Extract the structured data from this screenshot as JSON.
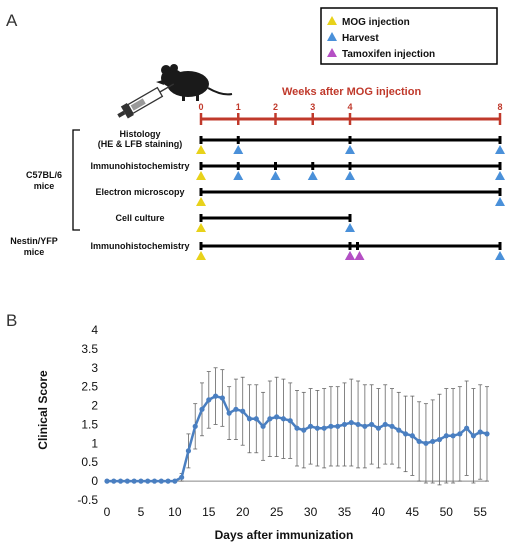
{
  "panel_a": {
    "label": "A",
    "legend": [
      {
        "label": "MOG injection",
        "color": "#e8d21a"
      },
      {
        "label": "Harvest",
        "color": "#4a90d9"
      },
      {
        "label": "Tamoxifen injection",
        "color": "#b54fc4"
      }
    ],
    "timeline": {
      "title": "Weeks after MOG injection",
      "ticks": [
        "0",
        "1",
        "2",
        "3",
        "4",
        "8"
      ],
      "tick_weeks": [
        0,
        1,
        2,
        3,
        4,
        8
      ],
      "color": "#c0392b"
    },
    "groups": [
      {
        "name_lines": [
          "C57BL/6",
          "mice"
        ]
      },
      {
        "name_lines": [
          "Nestin/YFP",
          "mice"
        ]
      }
    ],
    "rows": [
      {
        "label_lines": [
          "Histology",
          "(HE & LFB staining)"
        ],
        "end_week": 8,
        "tick_weeks": [
          0,
          1,
          4,
          8
        ],
        "mog_weeks": [
          0
        ],
        "harvest_weeks": [
          1,
          4,
          8
        ],
        "tamoxifen_weeks": []
      },
      {
        "label_lines": [
          "Immunohistochemistry"
        ],
        "end_week": 8,
        "tick_weeks": [
          0,
          1,
          2,
          3,
          4,
          8
        ],
        "mog_weeks": [
          0
        ],
        "harvest_weeks": [
          1,
          2,
          3,
          4,
          8
        ],
        "tamoxifen_weeks": []
      },
      {
        "label_lines": [
          "Electron microscopy"
        ],
        "end_week": 8,
        "tick_weeks": [
          0,
          8
        ],
        "mog_weeks": [
          0
        ],
        "harvest_weeks": [
          8
        ],
        "tamoxifen_weeks": []
      },
      {
        "label_lines": [
          "Cell culture"
        ],
        "end_week": 4,
        "tick_weeks": [
          0,
          4
        ],
        "mog_weeks": [
          0
        ],
        "harvest_weeks": [
          4
        ],
        "tamoxifen_weeks": []
      },
      {
        "label_lines": [
          "Immunohistochemistry"
        ],
        "end_week": 8,
        "tick_weeks": [
          0,
          4,
          4.2,
          8
        ],
        "mog_weeks": [
          0
        ],
        "harvest_weeks": [
          4,
          8
        ],
        "tamoxifen_weeks": [
          4,
          4.2
        ]
      }
    ]
  },
  "chart_data": {
    "type": "line",
    "panel_label": "B",
    "xlabel": "Days after immunization",
    "ylabel": "Clinical Score",
    "xlim": [
      0,
      56
    ],
    "ylim": [
      -0.5,
      4
    ],
    "x_ticks": [
      0,
      5,
      10,
      15,
      20,
      25,
      30,
      35,
      40,
      45,
      50,
      55
    ],
    "y_ticks": [
      -0.5,
      0,
      0.5,
      1,
      1.5,
      2,
      2.5,
      3,
      3.5,
      4
    ],
    "y_tick_labels": [
      "-0.5",
      "0",
      "0.5",
      "1",
      "1.5",
      "2",
      "2.5",
      "3",
      "3.5",
      "4"
    ],
    "series_color": "#4a7fc1",
    "series": [
      {
        "x": [
          0,
          1,
          2,
          3,
          4,
          5,
          6,
          7,
          8,
          9,
          10,
          11,
          12,
          13,
          14,
          15,
          16,
          17,
          18,
          19,
          20,
          21,
          22,
          23,
          24,
          25,
          26,
          27,
          28,
          29,
          30,
          31,
          32,
          33,
          34,
          35,
          36,
          37,
          38,
          39,
          40,
          41,
          42,
          43,
          44,
          45,
          46,
          47,
          48,
          49,
          50,
          51,
          52,
          53,
          54,
          55,
          56
        ],
        "y": [
          0,
          0,
          0,
          0,
          0,
          0,
          0,
          0,
          0,
          0,
          0,
          0.1,
          0.8,
          1.45,
          1.9,
          2.15,
          2.25,
          2.2,
          1.8,
          1.9,
          1.85,
          1.65,
          1.65,
          1.45,
          1.65,
          1.7,
          1.65,
          1.6,
          1.4,
          1.35,
          1.45,
          1.4,
          1.4,
          1.45,
          1.45,
          1.5,
          1.55,
          1.5,
          1.45,
          1.5,
          1.4,
          1.5,
          1.45,
          1.35,
          1.25,
          1.2,
          1.05,
          1.0,
          1.05,
          1.1,
          1.2,
          1.2,
          1.25,
          1.4,
          1.2,
          1.3,
          1.25
        ],
        "err": [
          0,
          0,
          0,
          0,
          0,
          0,
          0,
          0,
          0,
          0,
          0,
          0.1,
          0.45,
          0.6,
          0.7,
          0.75,
          0.75,
          0.75,
          0.7,
          0.8,
          0.9,
          0.9,
          0.9,
          0.9,
          1.0,
          1.05,
          1.05,
          1.0,
          1.0,
          1.0,
          1.0,
          1.0,
          1.05,
          1.05,
          1.05,
          1.1,
          1.15,
          1.15,
          1.1,
          1.05,
          1.05,
          1.05,
          1.0,
          1.0,
          1.0,
          1.05,
          1.05,
          1.05,
          1.1,
          1.2,
          1.25,
          1.25,
          1.25,
          1.25,
          1.25,
          1.25,
          1.25
        ]
      }
    ]
  }
}
